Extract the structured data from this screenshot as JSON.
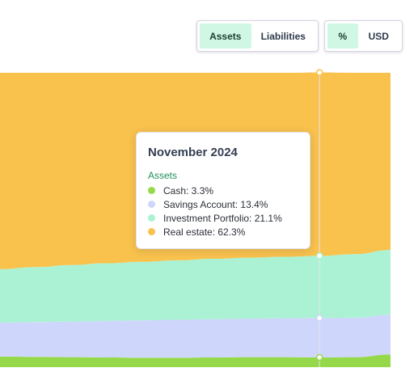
{
  "controls": {
    "view_toggle": [
      {
        "label": "Assets",
        "active": true
      },
      {
        "label": "Liabilities",
        "active": false
      }
    ],
    "unit_toggle": [
      {
        "label": "%",
        "active": true
      },
      {
        "label": "USD",
        "active": false
      }
    ]
  },
  "colors": {
    "cash": "#95d94a",
    "savings": "#cfd6fb",
    "investment": "#abf2d4",
    "real_estate": "#f9c24d",
    "accent": "#1f8f5a",
    "active_toggle_bg": "#cff7e4"
  },
  "tooltip": {
    "title": "November 2024",
    "group_label": "Assets",
    "items": [
      {
        "label": "Cash: 3.3%",
        "color": "#95d94a"
      },
      {
        "label": "Savings Account: 13.4%",
        "color": "#cfd6fb"
      },
      {
        "label": "Investment Portfolio: 21.1%",
        "color": "#abf2d4"
      },
      {
        "label": "Real estate: 62.3%",
        "color": "#f9c24d"
      }
    ]
  },
  "chart_data": {
    "type": "area",
    "stacked": true,
    "y_unit": "%",
    "ylim": [
      0,
      100
    ],
    "x_points": 12,
    "highlight_index": 9,
    "series": [
      {
        "name": "Cash",
        "color": "#95d94a",
        "values": [
          3.6,
          3.5,
          3.4,
          3.3,
          3.2,
          3.2,
          3.3,
          3.4,
          3.4,
          3.3,
          3.4,
          4.3
        ]
      },
      {
        "name": "Savings Account",
        "color": "#cfd6fb",
        "values": [
          11.5,
          11.8,
          12.1,
          12.4,
          12.7,
          12.9,
          13.0,
          13.1,
          13.2,
          13.4,
          13.4,
          13.5
        ]
      },
      {
        "name": "Investment Portfolio",
        "color": "#abf2d4",
        "values": [
          18.2,
          18.7,
          19.2,
          19.6,
          19.9,
          20.2,
          20.5,
          20.7,
          20.9,
          21.1,
          21.6,
          22.0
        ]
      },
      {
        "name": "Real estate",
        "color": "#f9c24d",
        "values": [
          66.7,
          66.0,
          65.3,
          64.7,
          64.2,
          63.7,
          63.2,
          62.8,
          62.5,
          62.3,
          61.6,
          60.2
        ]
      }
    ]
  }
}
